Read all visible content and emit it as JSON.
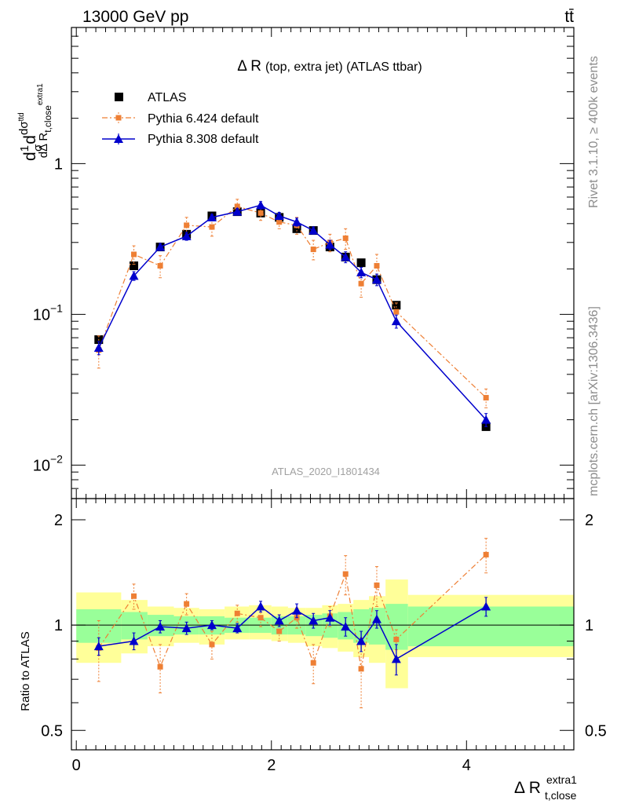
{
  "header": {
    "energy_label": "13000 GeV pp",
    "process_label": "tt̄"
  },
  "side_labels": {
    "rivet": "Rivet 3.1.10, ≥ 400k events",
    "mcplots": "mcplots.cern.ch [arXiv:1306.3436]"
  },
  "watermark": "ATLAS_2020_I1801434",
  "chart_data": [
    {
      "type": "scatter",
      "title": "Δ R (top, extra jet) (ATLAS ttbar)",
      "title_main": "Δ R",
      "title_rest": "(top, extra jet) (ATLAS ttbar)",
      "ylabel": "d(1/σ)dσ^ttd / dΔ R_t,close^extra1",
      "y_scale": "log",
      "ylim": [
        0.006,
        8.0
      ],
      "xlim": [
        -0.05,
        5.1
      ],
      "y_ticks": [
        {
          "value": 1,
          "label": "1"
        },
        {
          "value": 0.1,
          "label": "10",
          "exp": "−1"
        },
        {
          "value": 0.01,
          "label": "10",
          "exp": "−2"
        }
      ],
      "legend_placement": "top-left",
      "series": [
        {
          "name": "ATLAS",
          "color": "#000000",
          "marker": "square",
          "x": [
            0.23,
            0.59,
            0.86,
            1.13,
            1.39,
            1.65,
            1.89,
            2.08,
            2.26,
            2.43,
            2.6,
            2.76,
            2.92,
            3.08,
            3.28,
            4.2
          ],
          "y": [
            0.068,
            0.21,
            0.28,
            0.34,
            0.45,
            0.48,
            0.47,
            0.44,
            0.37,
            0.36,
            0.28,
            0.24,
            0.22,
            0.17,
            0.115,
            0.018
          ]
        },
        {
          "name": "Pythia 6.424 default",
          "color": "#ee7f34",
          "marker": "small-square",
          "line": "dashdot",
          "x": [
            0.23,
            0.59,
            0.86,
            1.13,
            1.39,
            1.65,
            1.89,
            2.08,
            2.26,
            2.43,
            2.6,
            2.76,
            2.92,
            3.08,
            3.28,
            4.2
          ],
          "y": [
            0.058,
            0.25,
            0.21,
            0.39,
            0.38,
            0.52,
            0.47,
            0.41,
            0.39,
            0.27,
            0.3,
            0.32,
            0.16,
            0.21,
            0.104,
            0.028
          ],
          "err": [
            0.014,
            0.035,
            0.035,
            0.05,
            0.05,
            0.06,
            0.05,
            0.04,
            0.05,
            0.04,
            0.04,
            0.05,
            0.03,
            0.04,
            0.015,
            0.004
          ]
        },
        {
          "name": "Pythia 8.308 default",
          "color": "#0000cc",
          "marker": "triangle",
          "line": "solid",
          "x": [
            0.23,
            0.59,
            0.86,
            1.13,
            1.39,
            1.65,
            1.89,
            2.08,
            2.26,
            2.43,
            2.6,
            2.76,
            2.92,
            3.08,
            3.28,
            4.2
          ],
          "y": [
            0.06,
            0.18,
            0.28,
            0.33,
            0.44,
            0.48,
            0.53,
            0.45,
            0.41,
            0.36,
            0.29,
            0.24,
            0.19,
            0.17,
            0.09,
            0.02
          ],
          "err": [
            0.006,
            0.012,
            0.015,
            0.02,
            0.02,
            0.025,
            0.03,
            0.025,
            0.025,
            0.02,
            0.02,
            0.02,
            0.015,
            0.015,
            0.009,
            0.002
          ]
        }
      ]
    },
    {
      "type": "scatter",
      "title": "",
      "ylabel": "Ratio to ATLAS",
      "xlabel": "Δ R_t,close^extra1",
      "xlabel_main": "Δ R",
      "xlabel_sub": "t,close",
      "xlabel_sup": "extra1",
      "y_scale": "log",
      "ylim": [
        0.44,
        2.3
      ],
      "xlim": [
        -0.05,
        5.1
      ],
      "x_ticks": [
        0,
        2,
        4
      ],
      "y_ticks": [
        0.5,
        1,
        2
      ],
      "reference_line": 1,
      "uncertainty_bands": {
        "edges": [
          0,
          0.46,
          0.73,
          1.0,
          1.26,
          1.52,
          1.77,
          2.0,
          2.17,
          2.35,
          2.52,
          2.68,
          2.84,
          3.0,
          3.17,
          3.4,
          5.1
        ],
        "inner_color": "#99ff99",
        "outer_color": "#ffff99",
        "inner": [
          [
            0.89,
            1.11
          ],
          [
            0.91,
            1.09
          ],
          [
            0.93,
            1.07
          ],
          [
            0.94,
            1.06
          ],
          [
            0.94,
            1.06
          ],
          [
            0.95,
            1.05
          ],
          [
            0.95,
            1.05
          ],
          [
            0.94,
            1.06
          ],
          [
            0.94,
            1.06
          ],
          [
            0.93,
            1.07
          ],
          [
            0.92,
            1.08
          ],
          [
            0.91,
            1.09
          ],
          [
            0.89,
            1.11
          ],
          [
            0.88,
            1.12
          ],
          [
            0.85,
            1.15
          ],
          [
            0.87,
            1.13
          ]
        ],
        "outer": [
          [
            0.78,
            1.24
          ],
          [
            0.83,
            1.18
          ],
          [
            0.87,
            1.13
          ],
          [
            0.89,
            1.12
          ],
          [
            0.88,
            1.11
          ],
          [
            0.91,
            1.13
          ],
          [
            0.91,
            1.14
          ],
          [
            0.9,
            1.13
          ],
          [
            0.89,
            1.12
          ],
          [
            0.87,
            1.12
          ],
          [
            0.86,
            1.14
          ],
          [
            0.84,
            1.15
          ],
          [
            0.81,
            1.18
          ],
          [
            0.78,
            1.21
          ],
          [
            0.66,
            1.35
          ],
          [
            0.81,
            1.22
          ]
        ]
      },
      "series": [
        {
          "name": "Pythia 6.424 default",
          "color": "#ee7f34",
          "marker": "small-square",
          "line": "dashdot",
          "x": [
            0.23,
            0.59,
            0.86,
            1.13,
            1.39,
            1.65,
            1.89,
            2.08,
            2.26,
            2.43,
            2.6,
            2.76,
            2.92,
            3.08,
            3.28,
            4.2
          ],
          "y": [
            0.86,
            1.21,
            0.76,
            1.15,
            0.88,
            1.08,
            1.05,
            0.96,
            1.05,
            0.78,
            1.06,
            1.4,
            0.75,
            1.3,
            0.91,
            1.59
          ],
          "err": [
            0.17,
            0.1,
            0.12,
            0.08,
            0.08,
            0.06,
            0.06,
            0.06,
            0.07,
            0.1,
            0.07,
            0.18,
            0.17,
            0.17,
            0.06,
            0.18
          ]
        },
        {
          "name": "Pythia 8.308 default",
          "color": "#0000cc",
          "marker": "triangle",
          "line": "solid",
          "x": [
            0.23,
            0.59,
            0.86,
            1.13,
            1.39,
            1.65,
            1.89,
            2.08,
            2.26,
            2.43,
            2.6,
            2.76,
            2.92,
            3.08,
            3.28,
            4.2
          ],
          "y": [
            0.87,
            0.9,
            0.99,
            0.98,
            1.0,
            0.98,
            1.13,
            1.03,
            1.1,
            1.03,
            1.05,
            0.99,
            0.9,
            1.04,
            0.8,
            1.13
          ],
          "err": [
            0.05,
            0.05,
            0.04,
            0.04,
            0.03,
            0.03,
            0.04,
            0.04,
            0.05,
            0.05,
            0.05,
            0.06,
            0.06,
            0.06,
            0.08,
            0.07
          ]
        }
      ]
    }
  ]
}
